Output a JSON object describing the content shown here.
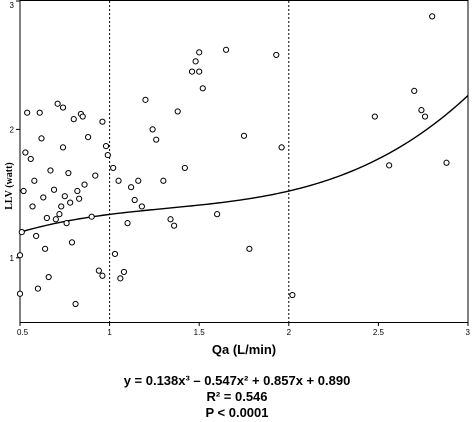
{
  "chart_data": {
    "type": "scatter",
    "xlabel": "Qa (L/min)",
    "ylabel": "LLV (watt)",
    "xlim": [
      0.5,
      3
    ],
    "ylim": [
      0.5,
      3
    ],
    "x_ticks": [
      "0.5",
      "1",
      "1.5",
      "2",
      "2.5",
      "3"
    ],
    "y_ticks": [
      "1",
      "2",
      "3"
    ],
    "reference_lines_x": [
      1,
      2
    ],
    "fit": {
      "type": "cubic",
      "coefficients": [
        0.138,
        -0.547,
        0.857,
        0.89
      ],
      "x_range": [
        0.5,
        3
      ]
    },
    "series": [
      {
        "marker": "open-circle",
        "points": [
          [
            0.5,
            0.72
          ],
          [
            0.5,
            1.02
          ],
          [
            0.51,
            1.2
          ],
          [
            0.52,
            1.52
          ],
          [
            0.53,
            1.82
          ],
          [
            0.54,
            2.13
          ],
          [
            0.56,
            1.77
          ],
          [
            0.57,
            1.4
          ],
          [
            0.58,
            1.6
          ],
          [
            0.59,
            1.17
          ],
          [
            0.6,
            0.76
          ],
          [
            0.61,
            2.13
          ],
          [
            0.62,
            1.93
          ],
          [
            0.63,
            1.47
          ],
          [
            0.64,
            1.07
          ],
          [
            0.65,
            1.31
          ],
          [
            0.66,
            0.85
          ],
          [
            0.67,
            1.68
          ],
          [
            0.69,
            1.53
          ],
          [
            0.7,
            1.3
          ],
          [
            0.71,
            2.2
          ],
          [
            0.72,
            1.34
          ],
          [
            0.73,
            1.4
          ],
          [
            0.74,
            1.86
          ],
          [
            0.74,
            2.17
          ],
          [
            0.75,
            1.48
          ],
          [
            0.76,
            1.27
          ],
          [
            0.77,
            1.66
          ],
          [
            0.78,
            1.43
          ],
          [
            0.79,
            1.12
          ],
          [
            0.8,
            2.08
          ],
          [
            0.81,
            0.64
          ],
          [
            0.82,
            1.52
          ],
          [
            0.83,
            1.46
          ],
          [
            0.84,
            2.12
          ],
          [
            0.85,
            2.1
          ],
          [
            0.86,
            1.57
          ],
          [
            0.88,
            1.94
          ],
          [
            0.9,
            1.32
          ],
          [
            0.92,
            1.64
          ],
          [
            0.94,
            0.9
          ],
          [
            0.96,
            0.86
          ],
          [
            0.96,
            2.06
          ],
          [
            0.98,
            1.87
          ],
          [
            0.99,
            1.8
          ],
          [
            1.02,
            1.7
          ],
          [
            1.03,
            1.03
          ],
          [
            1.05,
            1.6
          ],
          [
            1.06,
            0.84
          ],
          [
            1.08,
            0.89
          ],
          [
            1.1,
            1.27
          ],
          [
            1.12,
            1.55
          ],
          [
            1.14,
            1.45
          ],
          [
            1.16,
            1.6
          ],
          [
            1.18,
            1.4
          ],
          [
            1.2,
            2.23
          ],
          [
            1.24,
            2.0
          ],
          [
            1.26,
            1.92
          ],
          [
            1.3,
            1.6
          ],
          [
            1.34,
            1.3
          ],
          [
            1.36,
            1.25
          ],
          [
            1.38,
            2.14
          ],
          [
            1.42,
            1.7
          ],
          [
            1.46,
            2.45
          ],
          [
            1.48,
            2.53
          ],
          [
            1.5,
            2.6
          ],
          [
            1.5,
            2.45
          ],
          [
            1.52,
            2.32
          ],
          [
            1.6,
            1.34
          ],
          [
            1.65,
            2.62
          ],
          [
            1.75,
            1.95
          ],
          [
            1.78,
            1.07
          ],
          [
            1.93,
            2.58
          ],
          [
            1.96,
            1.86
          ],
          [
            2.02,
            0.71
          ],
          [
            2.48,
            2.1
          ],
          [
            2.56,
            1.72
          ],
          [
            2.7,
            2.3
          ],
          [
            2.74,
            2.15
          ],
          [
            2.76,
            2.1
          ],
          [
            2.8,
            2.88
          ],
          [
            2.88,
            1.74
          ]
        ]
      }
    ]
  },
  "annotations": {
    "equation": "y = 0.138x³ – 0.547x² + 0.857x + 0.890",
    "r2": "R² = 0.546",
    "p": "P < 0.0001"
  }
}
